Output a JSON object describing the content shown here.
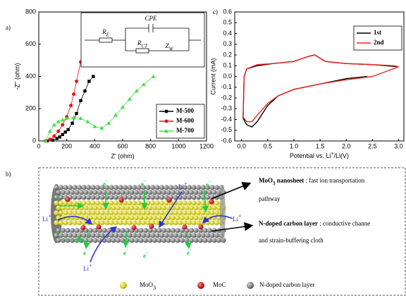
{
  "panels": {
    "a": "a)",
    "b": "b)",
    "c": "c)"
  },
  "chart_data": [
    {
      "type": "line",
      "xlabel": "Z' (ohm)",
      "ylabel": "-Z'' (ohm)",
      "xlim": [
        0,
        1200
      ],
      "ylim": [
        0,
        800
      ],
      "xticks": [
        0,
        200,
        400,
        600,
        800,
        1000,
        1200
      ],
      "yticks": [
        0,
        200,
        400,
        600,
        800
      ],
      "legend": "lower right",
      "circuit": {
        "cpe": "CPE",
        "re": {
          "main": "R",
          "sub": "E"
        },
        "rct": {
          "main": "R",
          "sub": "CT"
        },
        "zw": {
          "main": "Z",
          "sub": "W"
        }
      },
      "series": [
        {
          "name": "M-500",
          "color": "#000000",
          "marker": "square",
          "x": [
            60,
            100,
            130,
            150,
            170,
            190,
            210,
            240,
            270,
            300,
            330,
            360,
            390
          ],
          "values": [
            0,
            5,
            15,
            25,
            40,
            55,
            70,
            110,
            170,
            250,
            310,
            370,
            400
          ]
        },
        {
          "name": "M-600",
          "color": "#ee1111",
          "marker": "circle",
          "x": [
            50,
            80,
            110,
            140,
            170,
            200,
            230,
            250,
            270,
            300
          ],
          "values": [
            0,
            10,
            30,
            60,
            100,
            150,
            220,
            290,
            370,
            490
          ]
        },
        {
          "name": "M-700",
          "color": "#44dd44",
          "marker": "triangle",
          "x": [
            50,
            80,
            110,
            140,
            170,
            200,
            250,
            300,
            350,
            400,
            450,
            500,
            550,
            600,
            650,
            700,
            750,
            820
          ],
          "values": [
            0,
            60,
            100,
            120,
            130,
            140,
            145,
            140,
            120,
            90,
            80,
            110,
            160,
            210,
            260,
            310,
            350,
            400
          ]
        }
      ]
    },
    {
      "type": "line",
      "xlabel": {
        "main": "Potential vs. Li",
        "sup": "+",
        "rest": "/Li(V)"
      },
      "ylabel": "Current (mA)",
      "xlim": [
        -0.13,
        3.1
      ],
      "ylim": [
        -0.6,
        0.6
      ],
      "xticks": [
        {
          "value": 0,
          "label": "0.0"
        },
        0.5,
        {
          "value": 1,
          "label": "1.0"
        },
        1.5,
        {
          "value": 2,
          "label": "2.0"
        },
        2.5,
        {
          "value": 3,
          "label": "3.0"
        }
      ],
      "yticks": [
        0.6,
        0.5,
        0.4,
        0.3,
        0.2,
        0.1,
        {
          "value": 0,
          "label": "0.0"
        },
        -0.1,
        -0.2,
        -0.3,
        -0.4,
        -0.5,
        -0.6
      ],
      "legend": "upper right",
      "series": [
        {
          "name": "1st",
          "color": "#000000",
          "marker": "none",
          "x": [
            2.4,
            2.0,
            1.5,
            1.0,
            0.7,
            0.5,
            0.3,
            0.2,
            0.1,
            0.03,
            0.05,
            0.1,
            0.3,
            0.6,
            1.0,
            1.3,
            1.4,
            1.6,
            2.0,
            2.5,
            3.0
          ],
          "values": [
            0.0,
            -0.02,
            -0.07,
            -0.12,
            -0.18,
            -0.27,
            -0.42,
            -0.47,
            -0.45,
            -0.39,
            0.0,
            0.07,
            0.1,
            0.12,
            0.14,
            0.19,
            0.2,
            0.14,
            0.12,
            0.11,
            0.09
          ]
        },
        {
          "name": "2nd",
          "color": "#ee2222",
          "marker": "none",
          "x": [
            3.0,
            2.5,
            2.0,
            1.5,
            1.0,
            0.7,
            0.5,
            0.3,
            0.2,
            0.1,
            0.03,
            0.05,
            0.1,
            0.3,
            0.6,
            1.0,
            1.3,
            1.4,
            1.6,
            2.0,
            2.5,
            2.9,
            3.0
          ],
          "values": [
            0.09,
            0.0,
            -0.03,
            -0.07,
            -0.12,
            -0.18,
            -0.25,
            -0.36,
            -0.42,
            -0.42,
            -0.38,
            0.0,
            0.07,
            0.11,
            0.12,
            0.14,
            0.19,
            0.2,
            0.14,
            0.12,
            0.11,
            0.1,
            0.09
          ]
        }
      ]
    }
  ],
  "schematic": {
    "electron": {
      "main": "e",
      "sup": "-"
    },
    "lithium": {
      "main": "Li",
      "sup": "+"
    },
    "annotations": [
      {
        "term": {
          "main": "MoO",
          "sub": "3",
          "rest": " nanosheet"
        },
        "lines": [
          " : fast ion transportation",
          "pathway"
        ]
      },
      {
        "term": {
          "main": "N-doped carbon layer"
        },
        "lines": [
          " : conductive channe",
          "and strain-buffering cloth"
        ]
      }
    ],
    "legend": [
      {
        "main": "MoO",
        "sub": "3"
      },
      {
        "main": "MoC"
      },
      {
        "main": "N-doped carbon layer"
      }
    ]
  }
}
